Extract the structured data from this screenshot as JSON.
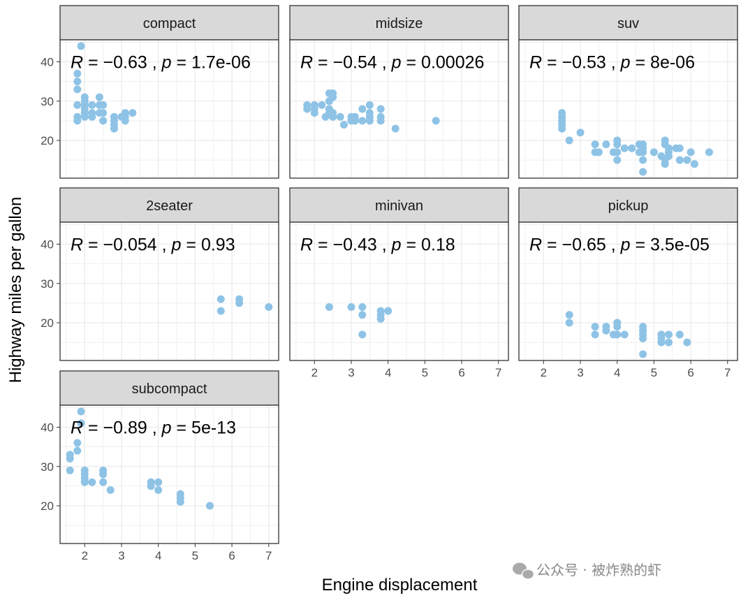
{
  "chart_data": {
    "type": "scatter",
    "xlabel": "Engine displacement",
    "ylabel": "Highway miles per gallon",
    "xlim": [
      1.33,
      7.27
    ],
    "ylim": [
      10.4,
      45.6
    ],
    "x_ticks": [
      2,
      3,
      4,
      5,
      6,
      7
    ],
    "y_ticks": [
      20,
      30,
      40
    ],
    "grid": true,
    "point_color": "#8ec3e6",
    "strip_color": "#d9d9d9",
    "panels": [
      {
        "facet": "compact",
        "annotation": {
          "R": "−0.63",
          "p": "1.7e-06"
        },
        "points": [
          [
            1.8,
            29
          ],
          [
            2,
            31
          ],
          [
            2,
            30
          ],
          [
            2.8,
            26
          ],
          [
            3.1,
            27
          ],
          [
            1.8,
            26
          ],
          [
            1.8,
            25
          ],
          [
            2,
            28
          ],
          [
            2,
            29
          ],
          [
            2.8,
            25
          ],
          [
            3.1,
            25
          ],
          [
            2.2,
            26
          ],
          [
            2.2,
            27
          ],
          [
            2.4,
            31
          ],
          [
            2.4,
            29
          ],
          [
            3,
            26
          ],
          [
            3.3,
            27
          ],
          [
            1.9,
            44
          ],
          [
            2,
            27
          ],
          [
            2.5,
            29
          ],
          [
            2.5,
            27
          ],
          [
            2.5,
            25
          ],
          [
            2.8,
            23
          ],
          [
            2.8,
            24
          ],
          [
            1.8,
            33
          ],
          [
            1.8,
            35
          ],
          [
            1.8,
            37
          ],
          [
            2.2,
            29
          ],
          [
            2.4,
            27
          ],
          [
            3.1,
            26
          ],
          [
            2,
            26
          ]
        ]
      },
      {
        "facet": "midsize",
        "annotation": {
          "R": "−0.54",
          "p": "0.00026"
        },
        "points": [
          [
            2.4,
            30
          ],
          [
            2.4,
            32
          ],
          [
            2.5,
            31
          ],
          [
            2.5,
            32
          ],
          [
            3.3,
            28
          ],
          [
            3.5,
            29
          ],
          [
            3.8,
            26
          ],
          [
            3.8,
            28
          ],
          [
            1.8,
            29
          ],
          [
            2,
            27
          ],
          [
            2.2,
            29
          ],
          [
            2.4,
            28
          ],
          [
            2.5,
            26
          ],
          [
            2.7,
            26
          ],
          [
            2.8,
            24
          ],
          [
            3,
            25
          ],
          [
            3.1,
            26
          ],
          [
            3.3,
            25
          ],
          [
            3.5,
            26
          ],
          [
            3.8,
            25
          ],
          [
            4.2,
            23
          ],
          [
            5.3,
            25
          ],
          [
            2.4,
            27
          ],
          [
            3.1,
            25
          ],
          [
            3.5,
            27
          ],
          [
            3,
            26
          ],
          [
            2,
            29
          ],
          [
            2.5,
            27
          ],
          [
            3.5,
            25
          ],
          [
            1.8,
            28
          ],
          [
            2,
            28
          ],
          [
            2.3,
            26
          ]
        ]
      },
      {
        "facet": "suv",
        "annotation": {
          "R": "−0.53",
          "p": "8e-06"
        },
        "points": [
          [
            2.5,
            27
          ],
          [
            2.5,
            26
          ],
          [
            2.5,
            25
          ],
          [
            2.5,
            24
          ],
          [
            2.5,
            23
          ],
          [
            2.7,
            20
          ],
          [
            3,
            22
          ],
          [
            3.4,
            17
          ],
          [
            3.4,
            19
          ],
          [
            3.5,
            17
          ],
          [
            3.7,
            19
          ],
          [
            3.9,
            17
          ],
          [
            4,
            20
          ],
          [
            4,
            17
          ],
          [
            4,
            15
          ],
          [
            4,
            19
          ],
          [
            4.2,
            18
          ],
          [
            4.4,
            18
          ],
          [
            4.6,
            19
          ],
          [
            4.6,
            17
          ],
          [
            4.7,
            19
          ],
          [
            4.7,
            17
          ],
          [
            4.7,
            15
          ],
          [
            4.7,
            12
          ],
          [
            4.7,
            18
          ],
          [
            5,
            17
          ],
          [
            5.2,
            16
          ],
          [
            5.3,
            20
          ],
          [
            5.3,
            19
          ],
          [
            5.3,
            15
          ],
          [
            5.3,
            14
          ],
          [
            5.4,
            17
          ],
          [
            5.4,
            18
          ],
          [
            5.4,
            16
          ],
          [
            5.6,
            18
          ],
          [
            5.7,
            18
          ],
          [
            5.7,
            15
          ],
          [
            5.9,
            15
          ],
          [
            6,
            17
          ],
          [
            6.1,
            14
          ],
          [
            6.5,
            17
          ]
        ]
      },
      {
        "facet": "2seater",
        "annotation": {
          "R": "−0.054",
          "p": "0.93"
        },
        "points": [
          [
            5.7,
            26
          ],
          [
            5.7,
            23
          ],
          [
            6.2,
            26
          ],
          [
            6.2,
            25
          ],
          [
            7,
            24
          ]
        ]
      },
      {
        "facet": "minivan",
        "annotation": {
          "R": "−0.43",
          "p": "0.18"
        },
        "points": [
          [
            2.4,
            24
          ],
          [
            3,
            24
          ],
          [
            3.3,
            24
          ],
          [
            3.3,
            22
          ],
          [
            3.3,
            17
          ],
          [
            3.8,
            23
          ],
          [
            3.8,
            22
          ],
          [
            3.8,
            21
          ],
          [
            4,
            23
          ]
        ]
      },
      {
        "facet": "pickup",
        "annotation": {
          "R": "−0.65",
          "p": "3.5e-05"
        },
        "points": [
          [
            2.7,
            22
          ],
          [
            2.7,
            20
          ],
          [
            3.4,
            19
          ],
          [
            3.4,
            17
          ],
          [
            3.7,
            19
          ],
          [
            3.7,
            18
          ],
          [
            3.9,
            17
          ],
          [
            4,
            20
          ],
          [
            4,
            19
          ],
          [
            4,
            17
          ],
          [
            4.2,
            17
          ],
          [
            4.7,
            19
          ],
          [
            4.7,
            18
          ],
          [
            4.7,
            17
          ],
          [
            4.7,
            16
          ],
          [
            4.7,
            12
          ],
          [
            5.2,
            17
          ],
          [
            5.2,
            16
          ],
          [
            5.2,
            15
          ],
          [
            5.4,
            17
          ],
          [
            5.4,
            15
          ],
          [
            5.7,
            17
          ],
          [
            5.9,
            15
          ]
        ]
      },
      {
        "facet": "subcompact",
        "annotation": {
          "R": "−0.89",
          "p": "5e-13"
        },
        "points": [
          [
            1.6,
            33
          ],
          [
            1.6,
            32
          ],
          [
            1.6,
            29
          ],
          [
            1.8,
            34
          ],
          [
            1.8,
            36
          ],
          [
            1.9,
            44
          ],
          [
            1.9,
            41
          ],
          [
            2,
            29
          ],
          [
            2,
            28
          ],
          [
            2,
            27
          ],
          [
            2,
            26
          ],
          [
            2.2,
            26
          ],
          [
            2.5,
            29
          ],
          [
            2.5,
            28
          ],
          [
            2.5,
            26
          ],
          [
            2.7,
            24
          ],
          [
            3.8,
            26
          ],
          [
            3.8,
            25
          ],
          [
            4,
            26
          ],
          [
            4,
            24
          ],
          [
            4.6,
            23
          ],
          [
            4.6,
            22
          ],
          [
            4.6,
            21
          ],
          [
            5.4,
            20
          ]
        ]
      }
    ]
  },
  "watermark": "公众号 · 被炸熟的虾"
}
